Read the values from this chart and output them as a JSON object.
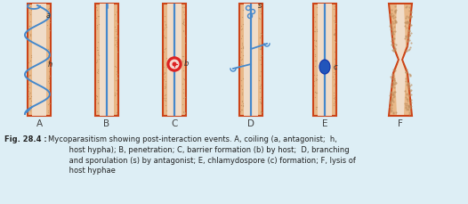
{
  "bg_color": "#ddeef5",
  "fig_width": 5.26,
  "fig_height": 2.29,
  "dpi": 100,
  "bg_color_inner": "#ddeef5",
  "host_fill": "#e8b888",
  "host_border": "#cc4418",
  "host_inner": "#f0dcc8",
  "host_inner2": "#e8caa8",
  "antagonist_color": "#4488cc",
  "dot_color": "#c09060",
  "barrier_fill": "#dd2222",
  "barrier_inner": "#f8e8e0",
  "chlamydo_color": "#2255bb",
  "panel_labels": [
    "A",
    "B",
    "C",
    "D",
    "E",
    "F"
  ],
  "caption_bold": "Fig. 28.4 :",
  "caption_normal": "Mycoparasitism showing post-interaction events. A, coiling (a, antagonist;  h,\n        host hypha); B, penetration; C, barrier formation (b) by host;  D, branching\n        and sporulation (s) by antagonist; E, chlamydospore (c) formation; F, lysis of\n        host hyphae"
}
